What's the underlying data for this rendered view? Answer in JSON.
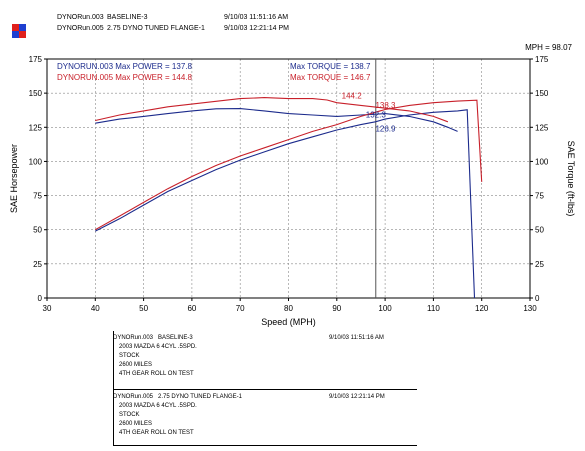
{
  "header": {
    "runs": [
      {
        "file": "DYNORun.003",
        "desc": "BASELINE-3",
        "timestamp": "9/10/03 11:51:16 AM"
      },
      {
        "file": "DYNORun.005",
        "desc": "2.75 DYNO TUNED FLANGE-1",
        "timestamp": "9/10/03 12:21:14 PM"
      }
    ],
    "logo_colors": [
      "#e0201c",
      "#1f3fd0",
      "#1f3fd0",
      "#e0201c"
    ]
  },
  "chart_data": {
    "type": "line",
    "xlabel": "Speed (MPH)",
    "ylabel_left": "SAE Horsepower",
    "ylabel_right": "SAE Torque (ft-lbs)",
    "xlim": [
      30,
      130
    ],
    "ylim": [
      0,
      175
    ],
    "xticks": [
      30,
      40,
      50,
      60,
      70,
      80,
      90,
      100,
      110,
      120,
      130
    ],
    "yticks": [
      0,
      25,
      50,
      75,
      100,
      125,
      150,
      175
    ],
    "grid": true,
    "marker_label": "MPH = 98.07",
    "marker_x": 98.07,
    "series": [
      {
        "name": "DYNORUN.003",
        "metric": "power",
        "color": "#1c2b8c",
        "points": [
          [
            40,
            49
          ],
          [
            45,
            58
          ],
          [
            50,
            68
          ],
          [
            55,
            78
          ],
          [
            60,
            86
          ],
          [
            65,
            94
          ],
          [
            70,
            101
          ],
          [
            75,
            107
          ],
          [
            80,
            113
          ],
          [
            85,
            118
          ],
          [
            90,
            123
          ],
          [
            95,
            127
          ],
          [
            98,
            129
          ],
          [
            100,
            131
          ],
          [
            105,
            134
          ],
          [
            110,
            136
          ],
          [
            115,
            137
          ],
          [
            117,
            137.8
          ],
          [
            118.5,
            0
          ]
        ]
      },
      {
        "name": "DYNORUN.003",
        "metric": "torque",
        "color": "#1c2b8c",
        "points": [
          [
            40,
            128
          ],
          [
            45,
            131
          ],
          [
            50,
            133
          ],
          [
            55,
            135
          ],
          [
            60,
            137
          ],
          [
            65,
            138.5
          ],
          [
            70,
            138.7
          ],
          [
            75,
            137
          ],
          [
            80,
            135
          ],
          [
            85,
            134
          ],
          [
            90,
            133
          ],
          [
            95,
            134
          ],
          [
            100,
            135
          ],
          [
            105,
            133
          ],
          [
            110,
            129
          ],
          [
            113,
            125
          ],
          [
            115,
            122
          ]
        ]
      },
      {
        "name": "DYNORUN.005",
        "metric": "power",
        "color": "#c8202a",
        "points": [
          [
            40,
            50
          ],
          [
            45,
            60
          ],
          [
            50,
            70
          ],
          [
            55,
            80
          ],
          [
            60,
            89
          ],
          [
            65,
            97
          ],
          [
            70,
            104
          ],
          [
            75,
            110
          ],
          [
            80,
            116
          ],
          [
            85,
            122
          ],
          [
            90,
            127
          ],
          [
            95,
            133
          ],
          [
            100,
            138
          ],
          [
            105,
            141
          ],
          [
            110,
            143
          ],
          [
            115,
            144.2
          ],
          [
            119,
            144.8
          ],
          [
            120,
            85
          ]
        ]
      },
      {
        "name": "DYNORUN.005",
        "metric": "torque",
        "color": "#c8202a",
        "points": [
          [
            40,
            130
          ],
          [
            45,
            134
          ],
          [
            50,
            137
          ],
          [
            55,
            140
          ],
          [
            60,
            142
          ],
          [
            65,
            144
          ],
          [
            70,
            146
          ],
          [
            75,
            146.7
          ],
          [
            80,
            146
          ],
          [
            85,
            146
          ],
          [
            88,
            145
          ],
          [
            90,
            143
          ],
          [
            95,
            141
          ],
          [
            100,
            139
          ],
          [
            105,
            137
          ],
          [
            110,
            133
          ],
          [
            113,
            129
          ]
        ]
      }
    ],
    "legend": [
      {
        "text": "DYNORUN.003  Max POWER = 137.8",
        "color": "#1c2b8c"
      },
      {
        "text": "DYNORUN.005  Max POWER = 144.8",
        "color": "#c8202a"
      },
      {
        "text": "Max TORQUE = 138.7",
        "color": "#1c2b8c"
      },
      {
        "text": "Max TORQUE = 146.7",
        "color": "#c8202a"
      }
    ],
    "annotations": [
      {
        "text": "144.2",
        "color": "#c8202a",
        "x": 91,
        "y": 146
      },
      {
        "text": "138.3",
        "color": "#c8202a",
        "x": 98,
        "y": 139
      },
      {
        "text": "132.3",
        "color": "#1c2b8c",
        "x": 96,
        "y": 132
      },
      {
        "text": "126.9",
        "color": "#1c2b8c",
        "x": 98,
        "y": 122
      }
    ]
  },
  "footer": {
    "runs": [
      {
        "file": "DYNORun.003",
        "desc": "BASELINE-3",
        "timestamp": "9/10/03 11:51:16 AM",
        "lines": [
          "2003 MAZDA 6 4CYL .5SPD.",
          "STOCK",
          "2600 MILES",
          "4TH GEAR ROLL ON TEST"
        ]
      },
      {
        "file": "DYNORun.005",
        "desc": "2.75 DYNO TUNED FLANGE-1",
        "timestamp": "9/10/03 12:21:14 PM",
        "lines": [
          "2003 MAZDA 6 4CYL .5SPD.",
          "STOCK",
          "2600 MILES",
          "4TH GEAR ROLL ON TEST"
        ]
      }
    ]
  }
}
